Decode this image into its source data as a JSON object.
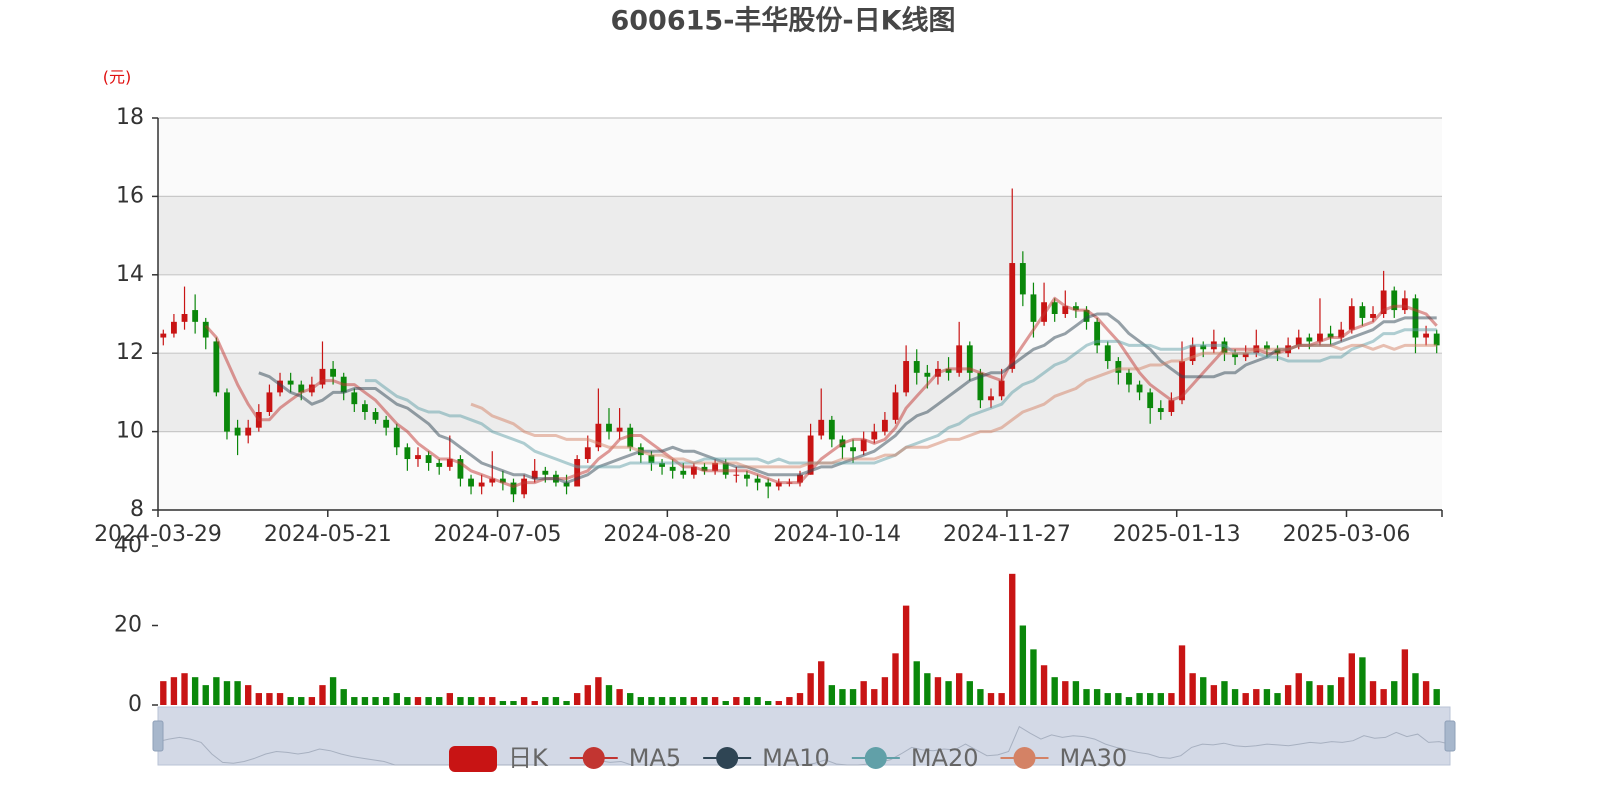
{
  "chart_data": [
    {
      "type": "candlestick",
      "title": "600615-丰华股份-日K线图",
      "y_unit": "(元)",
      "name": "日K",
      "up_color": "#c81414",
      "down_color": "#0a870a",
      "line_opacity": 0.5,
      "grid": true,
      "split_area": true,
      "legend": "bottom",
      "categories": [
        "2024-03-29",
        null,
        null,
        null,
        null,
        null,
        null,
        null,
        null,
        null,
        null,
        null,
        null,
        null,
        null,
        null,
        "2024-05-21",
        null,
        null,
        null,
        null,
        null,
        null,
        null,
        null,
        null,
        null,
        null,
        null,
        null,
        null,
        null,
        "2024-07-05",
        null,
        null,
        null,
        null,
        null,
        null,
        null,
        null,
        null,
        null,
        null,
        null,
        null,
        null,
        null,
        "2024-08-20",
        null,
        null,
        null,
        null,
        null,
        null,
        null,
        null,
        null,
        null,
        null,
        null,
        null,
        null,
        null,
        "2024-10-14",
        null,
        null,
        null,
        null,
        null,
        null,
        null,
        null,
        null,
        null,
        null,
        null,
        null,
        null,
        null,
        "2024-11-27",
        null,
        null,
        null,
        null,
        null,
        null,
        null,
        null,
        null,
        null,
        null,
        null,
        null,
        null,
        null,
        "2025-01-13",
        null,
        null,
        null,
        null,
        null,
        null,
        null,
        null,
        null,
        null,
        null,
        null,
        null,
        null,
        null,
        "2025-03-06",
        null,
        null,
        null,
        null,
        null,
        null,
        null,
        null
      ],
      "open": [
        12.4,
        12.5,
        12.8,
        13.1,
        12.8,
        12.3,
        11.0,
        10.1,
        9.9,
        10.1,
        10.5,
        11.0,
        11.3,
        11.2,
        11.0,
        11.2,
        11.6,
        11.4,
        11.0,
        10.7,
        10.5,
        10.3,
        10.1,
        9.6,
        9.3,
        9.4,
        9.2,
        9.1,
        9.3,
        8.8,
        8.6,
        8.7,
        8.8,
        8.7,
        8.4,
        8.8,
        9.0,
        8.9,
        8.7,
        8.6,
        9.3,
        9.6,
        10.2,
        10.0,
        10.1,
        9.6,
        9.4,
        9.2,
        9.1,
        9.0,
        8.9,
        9.1,
        9.0,
        9.2,
        8.9,
        8.9,
        8.8,
        8.7,
        8.6,
        8.7,
        8.7,
        8.9,
        9.9,
        10.3,
        9.8,
        9.6,
        9.5,
        9.8,
        10.0,
        10.3,
        11.0,
        11.8,
        11.5,
        11.4,
        11.6,
        11.5,
        12.2,
        11.5,
        10.8,
        10.9,
        11.6,
        14.3,
        13.5,
        12.8,
        13.3,
        13.0,
        13.2,
        13.1,
        12.8,
        12.2,
        11.8,
        11.5,
        11.2,
        11.0,
        10.6,
        10.5,
        10.8,
        11.8,
        12.2,
        12.1,
        12.3,
        12.0,
        11.9,
        12.0,
        12.2,
        12.1,
        12.0,
        12.2,
        12.4,
        12.3,
        12.5,
        12.4,
        12.6,
        13.2,
        12.9,
        13.0,
        13.6,
        13.1,
        13.4,
        12.4,
        12.5
      ],
      "close": [
        12.5,
        12.8,
        13.0,
        12.8,
        12.4,
        11.0,
        10.0,
        9.9,
        10.1,
        10.5,
        11.0,
        11.3,
        11.2,
        11.0,
        11.2,
        11.6,
        11.4,
        11.0,
        10.7,
        10.5,
        10.3,
        10.1,
        9.6,
        9.3,
        9.4,
        9.2,
        9.1,
        9.3,
        8.8,
        8.6,
        8.7,
        8.8,
        8.7,
        8.4,
        8.8,
        9.0,
        8.9,
        8.7,
        8.6,
        9.3,
        9.6,
        10.2,
        10.0,
        10.1,
        9.6,
        9.4,
        9.2,
        9.1,
        9.0,
        8.9,
        9.1,
        9.0,
        9.2,
        8.9,
        8.9,
        8.8,
        8.7,
        8.6,
        8.7,
        8.7,
        8.9,
        9.9,
        10.3,
        9.8,
        9.6,
        9.5,
        9.8,
        10.0,
        10.3,
        11.0,
        11.8,
        11.5,
        11.4,
        11.6,
        11.5,
        12.2,
        11.5,
        10.8,
        10.9,
        11.3,
        14.3,
        13.5,
        12.8,
        13.3,
        13.0,
        13.2,
        13.1,
        12.8,
        12.2,
        11.8,
        11.5,
        11.2,
        11.0,
        10.6,
        10.5,
        10.8,
        11.8,
        12.2,
        12.1,
        12.3,
        12.0,
        11.9,
        12.0,
        12.2,
        12.1,
        12.0,
        12.2,
        12.4,
        12.3,
        12.5,
        12.4,
        12.6,
        13.2,
        12.9,
        13.0,
        13.6,
        13.1,
        13.4,
        12.4,
        12.5,
        12.2
      ],
      "low": [
        12.2,
        12.4,
        12.6,
        12.5,
        12.1,
        10.9,
        9.8,
        9.4,
        9.7,
        10.0,
        10.4,
        10.9,
        11.0,
        10.8,
        10.9,
        11.1,
        11.2,
        10.8,
        10.5,
        10.3,
        10.2,
        9.9,
        9.4,
        9.0,
        9.1,
        9.0,
        8.9,
        9.0,
        8.6,
        8.4,
        8.4,
        8.6,
        8.5,
        8.2,
        8.3,
        8.7,
        8.7,
        8.6,
        8.4,
        8.6,
        9.2,
        9.5,
        9.8,
        9.8,
        9.5,
        9.2,
        9.0,
        8.9,
        8.8,
        8.8,
        8.8,
        8.9,
        8.9,
        8.8,
        8.7,
        8.6,
        8.5,
        8.3,
        8.5,
        8.6,
        8.6,
        8.9,
        9.8,
        9.6,
        9.3,
        9.2,
        9.4,
        9.7,
        9.9,
        10.2,
        10.9,
        11.2,
        11.1,
        11.2,
        11.3,
        11.4,
        11.3,
        10.6,
        10.6,
        10.8,
        11.5,
        13.2,
        12.4,
        12.7,
        12.8,
        12.9,
        12.9,
        12.6,
        12.0,
        11.6,
        11.2,
        11.0,
        10.8,
        10.2,
        10.3,
        10.4,
        10.7,
        11.7,
        11.9,
        12.0,
        11.8,
        11.7,
        11.8,
        11.9,
        11.9,
        11.8,
        11.9,
        12.1,
        12.1,
        12.2,
        12.2,
        12.3,
        12.5,
        12.7,
        12.8,
        12.9,
        12.9,
        13.0,
        12.0,
        12.2,
        12.0
      ],
      "high": [
        12.6,
        13.0,
        13.7,
        13.5,
        12.9,
        12.4,
        11.1,
        10.3,
        10.3,
        10.7,
        11.2,
        11.5,
        11.5,
        11.3,
        11.4,
        12.3,
        11.8,
        11.5,
        11.1,
        10.8,
        10.6,
        10.4,
        10.2,
        9.7,
        9.6,
        9.5,
        9.3,
        9.9,
        9.4,
        8.9,
        8.9,
        9.5,
        9.0,
        8.8,
        8.9,
        9.3,
        9.1,
        9.0,
        8.9,
        9.4,
        9.9,
        11.1,
        10.6,
        10.6,
        10.2,
        9.7,
        9.5,
        9.3,
        9.3,
        9.2,
        9.2,
        9.2,
        9.3,
        9.3,
        9.1,
        9.0,
        8.9,
        8.8,
        8.8,
        8.8,
        9.0,
        10.2,
        11.1,
        10.4,
        9.9,
        9.8,
        10.0,
        10.2,
        10.5,
        11.2,
        12.2,
        12.1,
        11.7,
        11.8,
        11.9,
        12.8,
        12.3,
        11.6,
        11.1,
        11.6,
        16.2,
        14.6,
        13.8,
        13.8,
        13.4,
        13.6,
        13.3,
        13.2,
        12.9,
        12.3,
        11.9,
        11.6,
        11.3,
        11.1,
        10.8,
        11.0,
        12.3,
        12.4,
        12.3,
        12.6,
        12.4,
        12.1,
        12.2,
        12.6,
        12.3,
        12.2,
        12.4,
        12.6,
        12.5,
        13.4,
        12.7,
        12.8,
        13.4,
        13.3,
        13.2,
        14.1,
        13.7,
        13.6,
        13.5,
        12.7,
        12.6
      ],
      "series": [
        {
          "name": "MA5",
          "color": "#c23531",
          "values": [
            null,
            null,
            null,
            null,
            12.7,
            12.4,
            11.8,
            11.2,
            10.7,
            10.3,
            10.3,
            10.6,
            10.8,
            11.0,
            11.1,
            11.3,
            11.3,
            11.2,
            11.2,
            11.0,
            10.8,
            10.5,
            10.2,
            10.0,
            9.7,
            9.5,
            9.3,
            9.3,
            9.2,
            9.0,
            8.9,
            8.8,
            8.7,
            8.6,
            8.7,
            8.7,
            8.8,
            8.8,
            8.8,
            8.9,
            9.0,
            9.3,
            9.5,
            9.8,
            9.9,
            9.9,
            9.7,
            9.5,
            9.3,
            9.1,
            9.1,
            9.0,
            9.0,
            9.0,
            9.0,
            9.0,
            8.9,
            8.8,
            8.7,
            8.7,
            8.7,
            9.0,
            9.3,
            9.5,
            9.7,
            9.8,
            9.8,
            9.7,
            9.8,
            10.1,
            10.6,
            10.9,
            11.2,
            11.5,
            11.6,
            11.6,
            11.6,
            11.5,
            11.4,
            11.3,
            11.8,
            12.2,
            12.6,
            13.0,
            13.4,
            13.2,
            13.1,
            13.1,
            12.9,
            12.6,
            12.3,
            11.9,
            11.5,
            11.2,
            11.0,
            10.8,
            10.9,
            11.2,
            11.5,
            11.8,
            12.1,
            12.1,
            12.1,
            12.1,
            12.0,
            12.0,
            12.1,
            12.2,
            12.2,
            12.3,
            12.4,
            12.4,
            12.6,
            12.7,
            12.8,
            13.1,
            13.2,
            13.2,
            13.1,
            13.0,
            12.7
          ]
        },
        {
          "name": "MA10",
          "color": "#2f4554",
          "values": [
            null,
            null,
            null,
            null,
            null,
            null,
            null,
            null,
            null,
            11.5,
            11.4,
            11.2,
            11.0,
            10.9,
            10.7,
            10.8,
            11.0,
            11.0,
            11.1,
            11.1,
            11.1,
            10.9,
            10.7,
            10.6,
            10.4,
            10.2,
            9.9,
            9.8,
            9.6,
            9.4,
            9.2,
            9.1,
            9.0,
            8.9,
            8.9,
            8.8,
            8.8,
            8.8,
            8.7,
            8.8,
            8.9,
            9.1,
            9.2,
            9.3,
            9.4,
            9.5,
            9.5,
            9.5,
            9.6,
            9.5,
            9.5,
            9.4,
            9.3,
            9.2,
            9.1,
            9.1,
            9.0,
            8.9,
            8.9,
            8.9,
            8.9,
            9.0,
            9.1,
            9.1,
            9.2,
            9.3,
            9.4,
            9.5,
            9.7,
            9.9,
            10.2,
            10.4,
            10.5,
            10.7,
            10.9,
            11.1,
            11.3,
            11.4,
            11.5,
            11.5,
            11.7,
            11.9,
            12.1,
            12.2,
            12.4,
            12.5,
            12.7,
            12.9,
            13.0,
            13.0,
            12.8,
            12.5,
            12.3,
            12.1,
            11.8,
            11.6,
            11.4,
            11.4,
            11.4,
            11.4,
            11.5,
            11.5,
            11.7,
            11.8,
            11.9,
            12.1,
            12.1,
            12.2,
            12.2,
            12.2,
            12.2,
            12.3,
            12.4,
            12.5,
            12.6,
            12.8,
            12.8,
            12.9,
            12.9,
            12.9,
            12.9
          ]
        },
        {
          "name": "MA20",
          "color": "#61a0a8",
          "values": [
            null,
            null,
            null,
            null,
            null,
            null,
            null,
            null,
            null,
            null,
            null,
            null,
            null,
            null,
            null,
            null,
            null,
            null,
            null,
            11.3,
            11.3,
            11.1,
            10.9,
            10.8,
            10.6,
            10.5,
            10.5,
            10.4,
            10.4,
            10.3,
            10.2,
            10.0,
            9.9,
            9.8,
            9.7,
            9.5,
            9.4,
            9.3,
            9.2,
            9.1,
            9.1,
            9.1,
            9.1,
            9.1,
            9.2,
            9.2,
            9.2,
            9.2,
            9.2,
            9.2,
            9.2,
            9.3,
            9.3,
            9.3,
            9.3,
            9.3,
            9.3,
            9.2,
            9.3,
            9.2,
            9.2,
            9.2,
            9.2,
            9.2,
            9.2,
            9.2,
            9.2,
            9.2,
            9.3,
            9.4,
            9.6,
            9.7,
            9.8,
            9.9,
            10.1,
            10.2,
            10.4,
            10.5,
            10.6,
            10.7,
            11.0,
            11.2,
            11.3,
            11.5,
            11.7,
            11.8,
            12.0,
            12.2,
            12.3,
            12.3,
            12.3,
            12.2,
            12.2,
            12.2,
            12.1,
            12.1,
            12.1,
            12.2,
            12.2,
            12.2,
            12.2,
            12.0,
            12.0,
            12.0,
            11.9,
            11.9,
            11.8,
            11.8,
            11.8,
            11.8,
            11.9,
            11.9,
            12.1,
            12.2,
            12.3,
            12.5,
            12.5,
            12.6,
            12.6,
            12.6,
            12.6
          ]
        },
        {
          "name": "MA30",
          "color": "#d48265",
          "values": [
            null,
            null,
            null,
            null,
            null,
            null,
            null,
            null,
            null,
            null,
            null,
            null,
            null,
            null,
            null,
            null,
            null,
            null,
            null,
            null,
            null,
            null,
            null,
            null,
            null,
            null,
            null,
            null,
            null,
            10.7,
            10.6,
            10.4,
            10.3,
            10.2,
            10.0,
            9.9,
            9.9,
            9.9,
            9.8,
            9.8,
            9.8,
            9.7,
            9.6,
            9.6,
            9.6,
            9.5,
            9.4,
            9.4,
            9.3,
            9.3,
            9.2,
            9.2,
            9.2,
            9.2,
            9.2,
            9.1,
            9.1,
            9.1,
            9.1,
            9.1,
            9.1,
            9.2,
            9.2,
            9.2,
            9.3,
            9.3,
            9.3,
            9.3,
            9.4,
            9.4,
            9.6,
            9.6,
            9.6,
            9.7,
            9.8,
            9.8,
            9.9,
            10.0,
            10.0,
            10.1,
            10.3,
            10.5,
            10.6,
            10.7,
            10.9,
            11.0,
            11.1,
            11.3,
            11.4,
            11.5,
            11.6,
            11.6,
            11.6,
            11.7,
            11.7,
            11.8,
            11.8,
            11.9,
            12.0,
            12.0,
            12.0,
            12.0,
            12.0,
            12.1,
            12.1,
            12.1,
            12.1,
            12.2,
            12.2,
            12.2,
            12.2,
            12.1,
            12.2,
            12.2,
            12.1,
            12.2,
            12.1,
            12.2,
            12.2,
            12.2,
            12.2
          ]
        }
      ],
      "ylim": [
        8,
        18
      ],
      "yticks": [
        8,
        10,
        12,
        14,
        16,
        18
      ]
    },
    {
      "type": "bar",
      "values": [
        6,
        7,
        8,
        7,
        5,
        7,
        6,
        6,
        5,
        3,
        3,
        3,
        2,
        2,
        2,
        5,
        7,
        4,
        2,
        2,
        2,
        2,
        3,
        2,
        2,
        2,
        2,
        3,
        2,
        2,
        2,
        2,
        1,
        1,
        2,
        1,
        2,
        2,
        1,
        3,
        5,
        7,
        5,
        4,
        3,
        2,
        2,
        2,
        2,
        2,
        2,
        2,
        2,
        1,
        2,
        2,
        2,
        1,
        1,
        2,
        3,
        8,
        11,
        5,
        4,
        4,
        6,
        4,
        7,
        13,
        25,
        11,
        8,
        7,
        6,
        8,
        6,
        4,
        3,
        3,
        33,
        20,
        14,
        10,
        7,
        6,
        6,
        4,
        4,
        3,
        3,
        2,
        3,
        3,
        3,
        3,
        15,
        8,
        7,
        5,
        6,
        4,
        3,
        4,
        4,
        3,
        5,
        8,
        6,
        5,
        5,
        7,
        13,
        12,
        6,
        4,
        6,
        14,
        8,
        6,
        4
      ],
      "ylim": [
        0,
        40
      ],
      "yticks": [
        0,
        20,
        40
      ]
    }
  ]
}
